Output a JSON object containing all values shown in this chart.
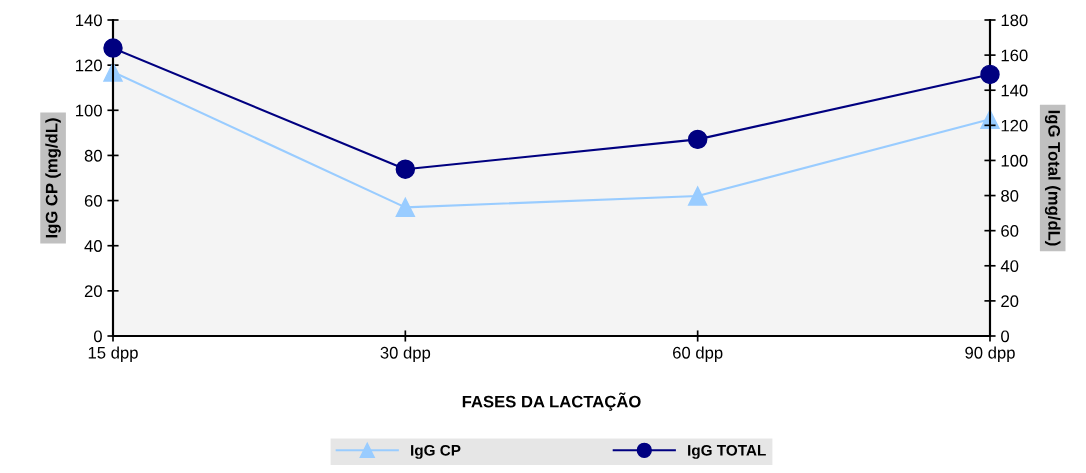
{
  "chart_data": {
    "type": "line",
    "xlabel": "FASES DA LACTAÇÃO",
    "ylabel": "IgG CP (mg/dL)",
    "y2label": "IgG Total (mg/dL)",
    "categories": [
      "15 dpp",
      "30 dpp",
      "60 dpp",
      "90 dpp"
    ],
    "series": [
      {
        "name": "IgG CP",
        "color": "#99ccff",
        "marker": "triangle",
        "values": [
          117,
          57,
          62,
          96
        ]
      },
      {
        "name": "IgG TOTAL",
        "color": "#000080",
        "marker": "circle",
        "axis": "y2",
        "values": [
          164,
          95,
          112,
          149
        ]
      }
    ],
    "ylim": [
      0,
      140
    ],
    "yticks": [
      0,
      20,
      40,
      60,
      80,
      100,
      120,
      140
    ],
    "y2lim": [
      0,
      180
    ],
    "y2ticks": [
      0,
      20,
      40,
      60,
      80,
      100,
      120,
      140,
      160,
      180
    ],
    "grid": false,
    "legend": "bottom"
  }
}
